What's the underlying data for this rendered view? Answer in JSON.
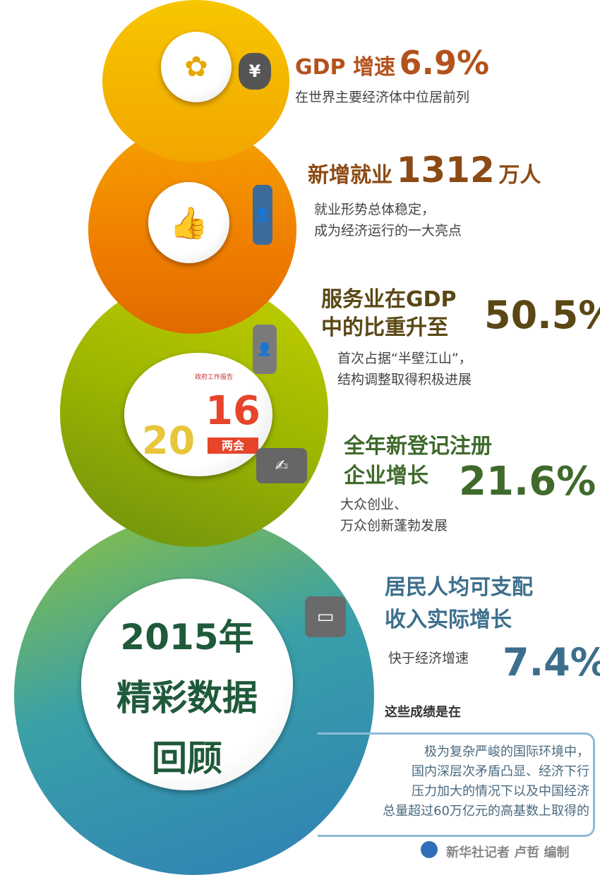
{
  "colors": {
    "gdp": "#b3521c",
    "jobs": "#8c4a14",
    "service": "#5a4714",
    "firms": "#3f6a2c",
    "income": "#3d6f8c",
    "note": "#4a6a80"
  },
  "gdp": {
    "label": "GDP 增速",
    "value": "6.9%",
    "desc": "在世界主要经济体中位居前列",
    "icon": "money-bag-icon"
  },
  "jobs": {
    "label": "新增就业",
    "value": "1312",
    "unit": "万人",
    "desc": [
      "就业形势总体稳定，",
      "成为经济运行的一大亮点"
    ],
    "icon": "businessman-icon"
  },
  "service": {
    "label": [
      "服务业在GDP",
      "中的比重升至"
    ],
    "value": "50.5%",
    "desc": [
      "首次占据“半壁江山”，",
      "结构调整取得积极进展"
    ],
    "icon": "waiter-icon"
  },
  "firms": {
    "label": [
      "全年新登记注册",
      "企业增长"
    ],
    "value": "21.6%",
    "desc": [
      "大众创业、",
      "万众创新蓬勃发展"
    ],
    "icon": "signing-icon"
  },
  "income": {
    "label": [
      "居民人均可支配",
      "收入实际增长"
    ],
    "sub": "快于经济增速",
    "value": "7.4%",
    "icon": "wallet-icon"
  },
  "logo": {
    "top": "政府工作报告",
    "year_a": "20",
    "year_b": "16",
    "ribbon": "两会"
  },
  "main_title": [
    "2015年",
    "精彩数据",
    "回顾"
  ],
  "note": {
    "lead": "这些成绩是在",
    "body": [
      "极为复杂严峻的国际环境中，",
      "国内深层次矛盾凸显、经济下行",
      "压力加大的情况下以及中国经济",
      "总量超过60万亿元的高基数上取得的"
    ]
  },
  "credit": "新华社记者 卢哲 编制"
}
